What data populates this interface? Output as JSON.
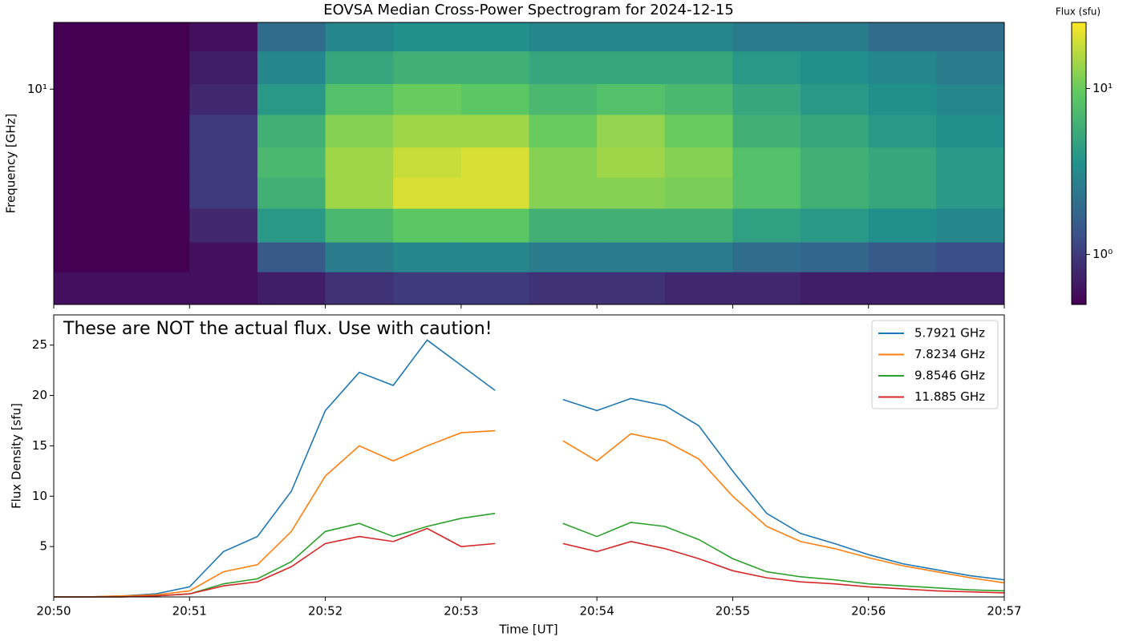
{
  "chart_data": [
    {
      "type": "heatmap",
      "title": "EOVSA Median Cross-Power Spectrogram for 2024-12-15",
      "ylabel": "Frequency [GHz]",
      "yscale": "log",
      "ylim": [
        1.5,
        18
      ],
      "yticks": [
        {
          "value": 10,
          "label": "10¹"
        }
      ],
      "xlim": [
        "20:50",
        "20:57"
      ],
      "x_bins": [
        "20:50:00",
        "20:50:30",
        "20:51:00",
        "20:51:30",
        "20:52:00",
        "20:52:30",
        "20:53:00",
        "20:53:30",
        "20:54:00",
        "20:54:30",
        "20:55:00",
        "20:55:30",
        "20:56:00",
        "20:56:30",
        "20:57:00"
      ],
      "y_bins": [
        1.5,
        2,
        2.6,
        3.5,
        4.6,
        6,
        8,
        10.5,
        14,
        18
      ],
      "z": [
        [
          0.6,
          0.6,
          0.6,
          0.7,
          0.9,
          1.0,
          1.0,
          0.9,
          0.9,
          0.8,
          0.8,
          0.7,
          0.7,
          0.7
        ],
        [
          0.5,
          0.5,
          0.6,
          1.5,
          2.5,
          3,
          3,
          2.5,
          2.5,
          2.5,
          2,
          1.8,
          1.5,
          1.3
        ],
        [
          0.5,
          0.5,
          0.8,
          4,
          7,
          9,
          9,
          6,
          6,
          6,
          4.5,
          4,
          3.5,
          3
        ],
        [
          0.5,
          0.5,
          1,
          6,
          14,
          20,
          20,
          12,
          12,
          11,
          8,
          6,
          5,
          4
        ],
        [
          0.5,
          0.5,
          1,
          7,
          14,
          18,
          20,
          12,
          14,
          12,
          8,
          6,
          5,
          4
        ],
        [
          0.5,
          0.5,
          1,
          6,
          12,
          14,
          14,
          10,
          13,
          10,
          6,
          5,
          4,
          3.5
        ],
        [
          0.5,
          0.5,
          0.8,
          4,
          8,
          10,
          9,
          7,
          8,
          7,
          5,
          4,
          3.5,
          3
        ],
        [
          0.5,
          0.5,
          0.7,
          3,
          5,
          6,
          6,
          5,
          5,
          5,
          4,
          3.5,
          3,
          2.5
        ],
        [
          0.5,
          0.5,
          0.6,
          2,
          3,
          3.5,
          3.5,
          3,
          3,
          3,
          2.5,
          2.5,
          2,
          2
        ]
      ],
      "colorbar": {
        "label": "Flux (sfu)",
        "scale": "log",
        "lim": [
          0.5,
          25
        ],
        "colormap": "viridis",
        "ticks": [
          {
            "value": 1,
            "label": "10⁰"
          },
          {
            "value": 10,
            "label": "10¹"
          }
        ]
      }
    },
    {
      "type": "line",
      "xlabel": "Time [UT]",
      "ylabel": "Flux Density [sfu]",
      "annotation": "These are NOT the actual flux. Use with caution!",
      "xlim": [
        "20:50",
        "20:57"
      ],
      "xticks": [
        "20:50",
        "20:51",
        "20:52",
        "20:53",
        "20:54",
        "20:55",
        "20:56",
        "20:57"
      ],
      "ylim": [
        0,
        28
      ],
      "yticks": [
        5,
        10,
        15,
        20,
        25
      ],
      "legend": "upper right",
      "x": [
        "20:50:00",
        "20:50:15",
        "20:50:30",
        "20:50:45",
        "20:51:00",
        "20:51:15",
        "20:51:30",
        "20:51:45",
        "20:52:00",
        "20:52:15",
        "20:52:30",
        "20:52:45",
        "20:53:00",
        "20:53:15",
        "20:53:30",
        "20:53:45",
        "20:54:00",
        "20:54:15",
        "20:54:30",
        "20:54:45",
        "20:55:00",
        "20:55:15",
        "20:55:30",
        "20:55:45",
        "20:56:00",
        "20:56:15",
        "20:56:30",
        "20:56:45",
        "20:57:00"
      ],
      "series": [
        {
          "name": "5.7921 GHz",
          "color": "#1f77b4",
          "values": [
            0,
            0,
            0.1,
            0.3,
            1,
            4.5,
            6,
            10.5,
            18.5,
            22.3,
            21,
            25.5,
            23,
            20.5,
            null,
            19.6,
            18.5,
            19.7,
            19,
            17,
            12.5,
            8.3,
            6.3,
            5.3,
            4.2,
            3.3,
            2.7,
            2.1,
            1.7
          ]
        },
        {
          "name": "7.8234 GHz",
          "color": "#ff7f0e",
          "values": [
            0,
            0,
            0.1,
            0.2,
            0.6,
            2.5,
            3.2,
            6.5,
            12,
            15,
            13.5,
            15,
            16.3,
            16.5,
            null,
            15.5,
            13.5,
            16.2,
            15.5,
            13.7,
            10,
            7,
            5.5,
            4.8,
            3.9,
            3.1,
            2.5,
            1.9,
            1.4
          ]
        },
        {
          "name": "9.8546 GHz",
          "color": "#2ca02c",
          "values": [
            0,
            0,
            0,
            0.1,
            0.3,
            1.3,
            1.8,
            3.5,
            6.5,
            7.3,
            6,
            7,
            7.8,
            8.3,
            null,
            7.3,
            6,
            7.4,
            7,
            5.7,
            3.8,
            2.5,
            2,
            1.7,
            1.3,
            1.1,
            0.9,
            0.7,
            0.6
          ]
        },
        {
          "name": "11.885 GHz",
          "color": "#d62728",
          "values": [
            0,
            0,
            0,
            0.1,
            0.3,
            1.1,
            1.5,
            3,
            5.3,
            6,
            5.5,
            6.8,
            5,
            5.3,
            null,
            5.3,
            4.5,
            5.5,
            4.8,
            3.8,
            2.6,
            1.9,
            1.5,
            1.3,
            1,
            0.8,
            0.6,
            0.5,
            0.4
          ]
        }
      ]
    }
  ]
}
